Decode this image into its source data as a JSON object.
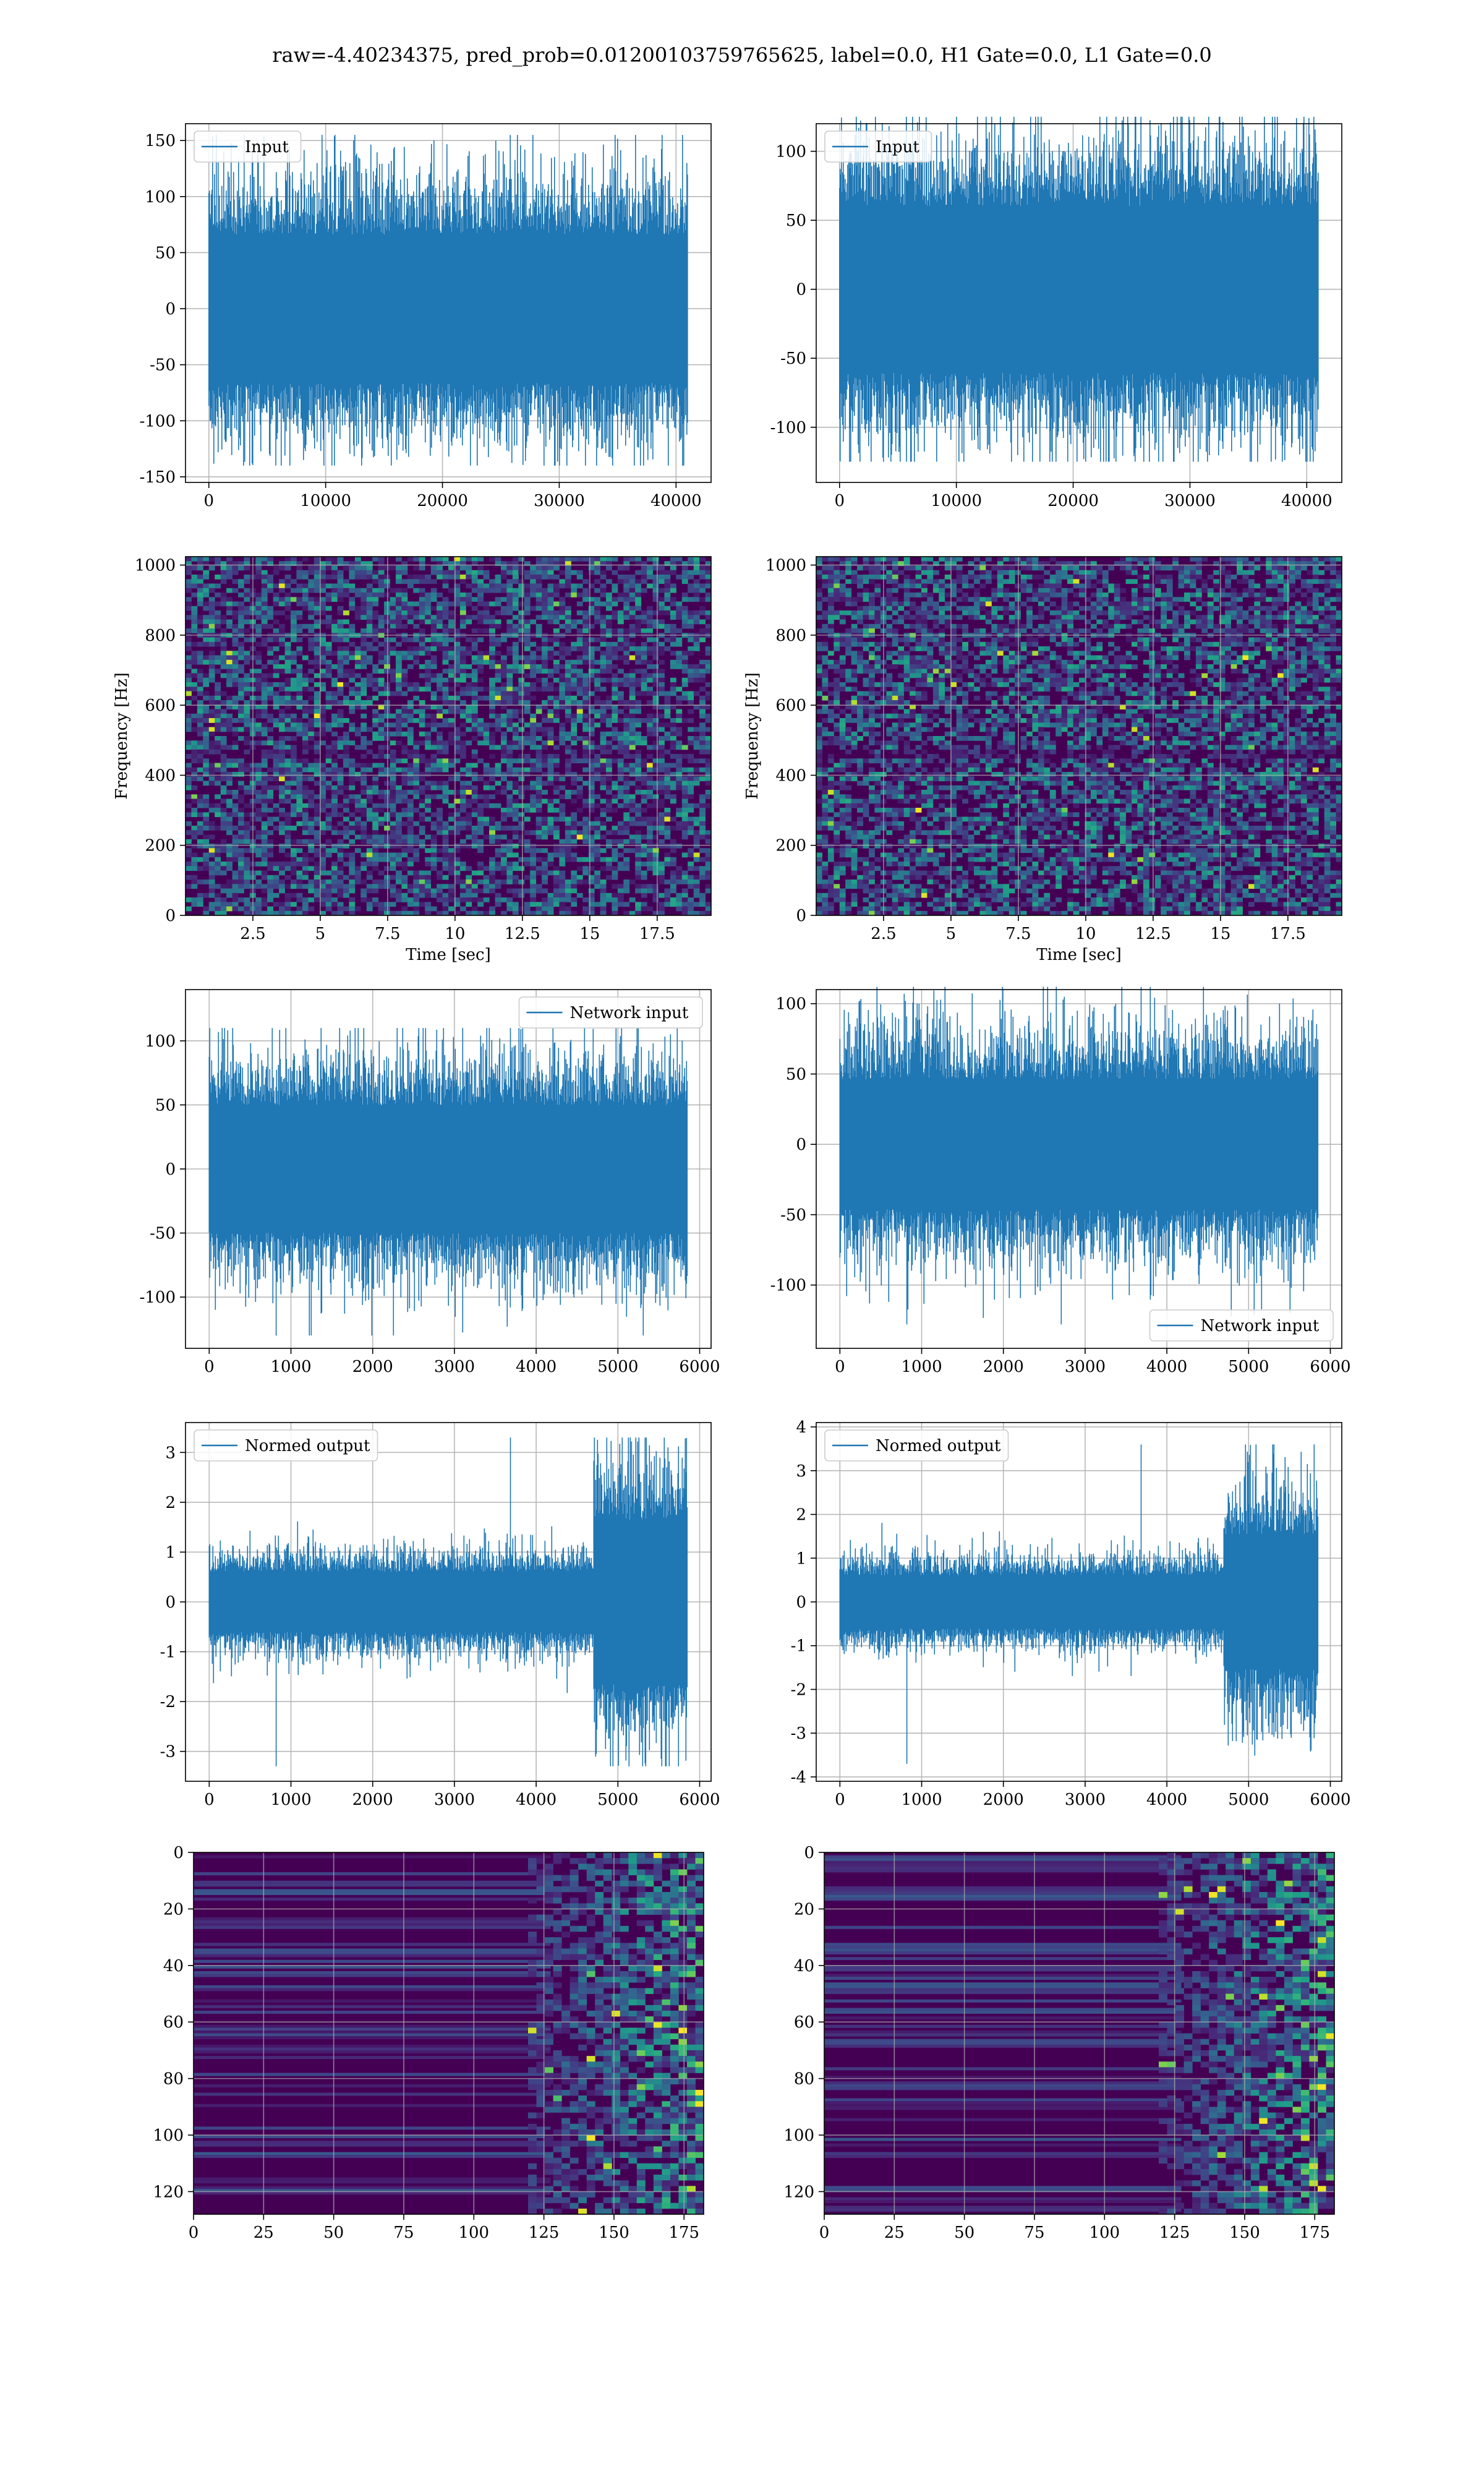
{
  "suptitle": "raw=-4.40234375, pred_prob=0.01200103759765625, label=0.0, H1 Gate=0.0, L1 Gate=0.0",
  "colors": {
    "line": "#1f77b4",
    "grid": "#b0b0b0",
    "viridis_dark": "#440154",
    "viridis_mid": "#21918c",
    "viridis_light": "#5ec962",
    "viridis_yellow": "#fde725"
  },
  "chart_data": [
    {
      "id": "input-h1",
      "type": "line",
      "series": [
        {
          "name": "Input",
          "amplitude": 60,
          "n": 40960,
          "min": -140,
          "max": 155
        }
      ],
      "x": [
        0,
        40960
      ],
      "xlim": [
        -2000,
        43000
      ],
      "ylim": [
        -155,
        165
      ],
      "xticks": [
        0,
        10000,
        20000,
        30000,
        40000
      ],
      "yticks": [
        -150,
        -100,
        -50,
        0,
        50,
        100,
        150
      ],
      "xlabel": "",
      "ylabel": "",
      "grid": true,
      "legend": "upper left"
    },
    {
      "id": "input-l1",
      "type": "line",
      "series": [
        {
          "name": "Input",
          "amplitude": 55,
          "n": 40960,
          "min": -125,
          "max": 125
        }
      ],
      "x": [
        0,
        40960
      ],
      "xlim": [
        -2000,
        43000
      ],
      "ylim": [
        -140,
        120
      ],
      "xticks": [
        0,
        10000,
        20000,
        30000,
        40000
      ],
      "yticks": [
        -100,
        -50,
        0,
        50,
        100
      ],
      "xlabel": "",
      "ylabel": "",
      "grid": true,
      "legend": "upper left"
    },
    {
      "id": "spectrogram-h1",
      "type": "heatmap",
      "colormap": "viridis",
      "xlim": [
        0,
        19.5
      ],
      "ylim": [
        0,
        1024
      ],
      "xticks": [
        2.5,
        5.0,
        7.5,
        10.0,
        12.5,
        15.0,
        17.5
      ],
      "yticks": [
        0,
        200,
        400,
        600,
        800,
        1000
      ],
      "xlabel": "Time [sec]",
      "ylabel": "Frequency [Hz]",
      "grid": true
    },
    {
      "id": "spectrogram-l1",
      "type": "heatmap",
      "colormap": "viridis",
      "xlim": [
        0,
        19.5
      ],
      "ylim": [
        0,
        1024
      ],
      "xticks": [
        2.5,
        5.0,
        7.5,
        10.0,
        12.5,
        15.0,
        17.5
      ],
      "yticks": [
        0,
        200,
        400,
        600,
        800,
        1000
      ],
      "xlabel": "Time [sec]",
      "ylabel": "Frequency [Hz]",
      "grid": true
    },
    {
      "id": "network-input-h1",
      "type": "line",
      "series": [
        {
          "name": "Network input",
          "amplitude": 45,
          "n": 5850,
          "min": -130,
          "max": 110
        }
      ],
      "x": [
        0,
        5850
      ],
      "xlim": [
        -290,
        6140
      ],
      "ylim": [
        -140,
        140
      ],
      "xticks": [
        0,
        1000,
        2000,
        3000,
        4000,
        5000,
        6000
      ],
      "yticks": [
        -100,
        -50,
        0,
        50,
        100
      ],
      "xlabel": "",
      "ylabel": "",
      "grid": true,
      "legend": "upper right"
    },
    {
      "id": "network-input-l1",
      "type": "line",
      "series": [
        {
          "name": "Network input",
          "amplitude": 42,
          "n": 5850,
          "min": -128,
          "max": 112
        }
      ],
      "x": [
        0,
        5850
      ],
      "xlim": [
        -290,
        6140
      ],
      "ylim": [
        -145,
        110
      ],
      "xticks": [
        0,
        1000,
        2000,
        3000,
        4000,
        5000,
        6000
      ],
      "yticks": [
        -100,
        -50,
        0,
        50,
        100
      ],
      "xlabel": "",
      "ylabel": "",
      "grid": true,
      "legend": "lower right"
    },
    {
      "id": "normed-output-h1",
      "type": "line",
      "series": [
        {
          "name": "Normed output",
          "amplitude": 0.55,
          "burst_start": 4700,
          "burst_amplitude": 1.5,
          "n": 5850,
          "min": -3.3,
          "max": 3.3
        }
      ],
      "x": [
        0,
        5850
      ],
      "xlim": [
        -290,
        6140
      ],
      "ylim": [
        -3.6,
        3.6
      ],
      "xticks": [
        0,
        1000,
        2000,
        3000,
        4000,
        5000,
        6000
      ],
      "yticks": [
        -3,
        -2,
        -1,
        0,
        1,
        2,
        3
      ],
      "xlabel": "",
      "ylabel": "",
      "grid": true,
      "legend": "upper left"
    },
    {
      "id": "normed-output-l1",
      "type": "line",
      "series": [
        {
          "name": "Normed output",
          "amplitude": 0.55,
          "burst_start": 4700,
          "burst_amplitude": 1.4,
          "n": 5850,
          "min": -3.7,
          "max": 3.6
        }
      ],
      "x": [
        0,
        5850
      ],
      "xlim": [
        -290,
        6140
      ],
      "ylim": [
        -4.1,
        4.1
      ],
      "xticks": [
        0,
        1000,
        2000,
        3000,
        4000,
        5000,
        6000
      ],
      "yticks": [
        -4,
        -3,
        -2,
        -1,
        0,
        1,
        2,
        3,
        4
      ],
      "xlabel": "",
      "ylabel": "",
      "grid": true,
      "legend": "upper left"
    },
    {
      "id": "feature-map-h1",
      "type": "heatmap",
      "colormap": "viridis",
      "rows": 128,
      "cols": 183,
      "xlim": [
        0,
        182
      ],
      "ylim": [
        128,
        0
      ],
      "xticks": [
        0,
        25,
        50,
        75,
        100,
        125,
        150,
        175
      ],
      "yticks": [
        0,
        20,
        40,
        60,
        80,
        100,
        120
      ],
      "xlabel": "",
      "ylabel": "",
      "grid": true
    },
    {
      "id": "feature-map-l1",
      "type": "heatmap",
      "colormap": "viridis",
      "rows": 128,
      "cols": 183,
      "xlim": [
        0,
        182
      ],
      "ylim": [
        128,
        0
      ],
      "xticks": [
        0,
        25,
        50,
        75,
        100,
        125,
        150,
        175
      ],
      "yticks": [
        0,
        20,
        40,
        60,
        80,
        100,
        120
      ],
      "xlabel": "",
      "ylabel": "",
      "grid": true
    }
  ]
}
